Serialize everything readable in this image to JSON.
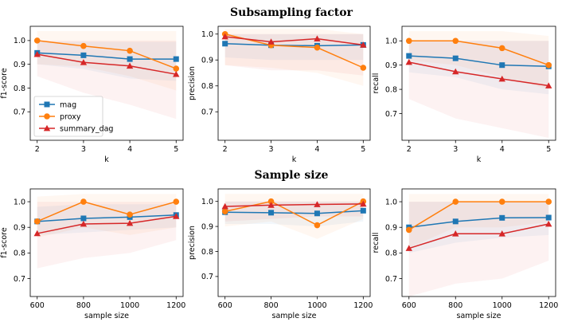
{
  "titles": {
    "top": "Subsampling factor",
    "bottom": "Sample size"
  },
  "colors": {
    "mag": "#1f77b4",
    "proxy": "#ff7f0e",
    "summary_dag": "#d62728"
  },
  "legend": [
    "mag",
    "proxy",
    "summary_dag"
  ],
  "chart_data": [
    {
      "type": "line",
      "row": 0,
      "col": 0,
      "xlabel": "k",
      "ylabel": "f1-score",
      "x": [
        2,
        3,
        4,
        5
      ],
      "xticks": [
        "2",
        "3",
        "4",
        "5"
      ],
      "xlim": [
        1.85,
        5.15
      ],
      "ylim": [
        0.58,
        1.06
      ],
      "yticks": [
        "0.7",
        "0.8",
        "0.9",
        "1.0"
      ],
      "ytick_values": [
        0.7,
        0.8,
        0.9,
        1.0
      ],
      "legend": true,
      "series": [
        {
          "name": "mag",
          "marker": "square",
          "values": [
            0.948,
            0.938,
            0.922,
            0.922
          ],
          "band": [
            [
              0.9,
              0.995
            ],
            [
              0.88,
              0.995
            ],
            [
              0.84,
              0.995
            ],
            [
              0.83,
              0.995
            ]
          ]
        },
        {
          "name": "proxy",
          "marker": "circle",
          "values": [
            1.0,
            0.977,
            0.957,
            0.882
          ],
          "band": [
            [
              0.9,
              1.04
            ],
            [
              0.89,
              1.04
            ],
            [
              0.85,
              1.04
            ],
            [
              0.79,
              1.04
            ]
          ]
        },
        {
          "name": "summary_dag",
          "marker": "triangle",
          "values": [
            0.942,
            0.908,
            0.893,
            0.858
          ],
          "band": [
            [
              0.85,
              1.0
            ],
            [
              0.78,
              1.0
            ],
            [
              0.73,
              1.0
            ],
            [
              0.67,
              1.0
            ]
          ]
        }
      ]
    },
    {
      "type": "line",
      "row": 0,
      "col": 1,
      "xlabel": "k",
      "ylabel": "precision",
      "x": [
        2,
        3,
        4,
        5
      ],
      "xticks": [
        "2",
        "3",
        "4",
        "5"
      ],
      "xlim": [
        1.85,
        5.15
      ],
      "ylim": [
        0.59,
        1.03
      ],
      "yticks": [
        "0.7",
        "0.8",
        "0.9",
        "1.0"
      ],
      "ytick_values": [
        0.7,
        0.8,
        0.9,
        1.0
      ],
      "legend": false,
      "series": [
        {
          "name": "mag",
          "marker": "square",
          "values": [
            0.963,
            0.957,
            0.955,
            0.958
          ],
          "band": [
            [
              0.91,
              1.0
            ],
            [
              0.9,
              1.0
            ],
            [
              0.9,
              1.0
            ],
            [
              0.9,
              1.0
            ]
          ]
        },
        {
          "name": "proxy",
          "marker": "circle",
          "values": [
            1.0,
            0.957,
            0.948,
            0.87
          ],
          "band": [
            [
              0.88,
              1.02
            ],
            [
              0.87,
              1.02
            ],
            [
              0.85,
              1.02
            ],
            [
              0.8,
              1.0
            ]
          ]
        },
        {
          "name": "summary_dag",
          "marker": "triangle",
          "values": [
            0.99,
            0.97,
            0.982,
            0.958
          ],
          "band": [
            [
              0.88,
              1.0
            ],
            [
              0.86,
              1.0
            ],
            [
              0.86,
              1.0
            ],
            [
              0.84,
              1.0
            ]
          ]
        }
      ]
    },
    {
      "type": "line",
      "row": 0,
      "col": 2,
      "xlabel": "k",
      "ylabel": "recall",
      "x": [
        2,
        3,
        4,
        5
      ],
      "xticks": [
        "2",
        "3",
        "4",
        "5"
      ],
      "xlim": [
        1.85,
        5.15
      ],
      "ylim": [
        0.59,
        1.06
      ],
      "yticks": [
        "0.7",
        "0.8",
        "0.9",
        "1.0"
      ],
      "ytick_values": [
        0.7,
        0.8,
        0.9,
        1.0
      ],
      "legend": false,
      "series": [
        {
          "name": "mag",
          "marker": "square",
          "values": [
            0.938,
            0.928,
            0.9,
            0.895
          ],
          "band": [
            [
              0.87,
              1.0
            ],
            [
              0.85,
              1.0
            ],
            [
              0.8,
              1.0
            ],
            [
              0.78,
              1.0
            ]
          ]
        },
        {
          "name": "proxy",
          "marker": "circle",
          "values": [
            1.0,
            1.0,
            0.97,
            0.9
          ],
          "band": [
            [
              0.92,
              1.04
            ],
            [
              0.9,
              1.04
            ],
            [
              0.85,
              1.04
            ],
            [
              0.8,
              1.02
            ]
          ]
        },
        {
          "name": "summary_dag",
          "marker": "triangle",
          "values": [
            0.912,
            0.873,
            0.843,
            0.815
          ],
          "band": [
            [
              0.76,
              1.0
            ],
            [
              0.68,
              1.0
            ],
            [
              0.64,
              1.0
            ],
            [
              0.6,
              1.0
            ]
          ]
        }
      ]
    },
    {
      "type": "line",
      "row": 1,
      "col": 0,
      "xlabel": "sample size",
      "ylabel": "f1-score",
      "x": [
        600,
        800,
        1000,
        1200
      ],
      "xticks": [
        "600",
        "800",
        "1000",
        "1200"
      ],
      "xlim": [
        570,
        1230
      ],
      "ylim": [
        0.63,
        1.05
      ],
      "yticks": [
        "0.7",
        "0.8",
        "0.9",
        "1.0"
      ],
      "ytick_values": [
        0.7,
        0.8,
        0.9,
        1.0
      ],
      "legend": false,
      "series": [
        {
          "name": "mag",
          "marker": "square",
          "values": [
            0.923,
            0.935,
            0.94,
            0.948
          ],
          "band": [
            [
              0.87,
              0.98
            ],
            [
              0.88,
              0.99
            ],
            [
              0.89,
              0.99
            ],
            [
              0.9,
              0.99
            ]
          ]
        },
        {
          "name": "proxy",
          "marker": "circle",
          "values": [
            0.923,
            1.0,
            0.95,
            1.0
          ],
          "band": [
            [
              0.86,
              1.02
            ],
            [
              0.9,
              1.03
            ],
            [
              0.87,
              1.03
            ],
            [
              0.9,
              1.03
            ]
          ]
        },
        {
          "name": "summary_dag",
          "marker": "triangle",
          "values": [
            0.876,
            0.913,
            0.916,
            0.943
          ],
          "band": [
            [
              0.74,
              1.0
            ],
            [
              0.78,
              1.0
            ],
            [
              0.8,
              1.0
            ],
            [
              0.85,
              1.0
            ]
          ]
        }
      ]
    },
    {
      "type": "line",
      "row": 1,
      "col": 1,
      "xlabel": "sample size",
      "ylabel": "precision",
      "x": [
        600,
        800,
        1000,
        1200
      ],
      "xticks": [
        "600",
        "800",
        "1000",
        "1200"
      ],
      "xlim": [
        570,
        1230
      ],
      "ylim": [
        0.62,
        1.05
      ],
      "yticks": [
        "0.7",
        "0.8",
        "0.9",
        "1.0"
      ],
      "ytick_values": [
        0.7,
        0.8,
        0.9,
        1.0
      ],
      "legend": false,
      "series": [
        {
          "name": "mag",
          "marker": "square",
          "values": [
            0.957,
            0.955,
            0.952,
            0.963
          ],
          "band": [
            [
              0.91,
              1.0
            ],
            [
              0.91,
              1.0
            ],
            [
              0.9,
              1.0
            ],
            [
              0.92,
              1.0
            ]
          ]
        },
        {
          "name": "proxy",
          "marker": "circle",
          "values": [
            0.96,
            1.0,
            0.905,
            1.0
          ],
          "band": [
            [
              0.9,
              1.03
            ],
            [
              0.92,
              1.03
            ],
            [
              0.85,
              1.03
            ],
            [
              0.93,
              1.03
            ]
          ]
        },
        {
          "name": "summary_dag",
          "marker": "triangle",
          "values": [
            0.98,
            0.985,
            0.988,
            0.99
          ],
          "band": [
            [
              0.92,
              1.0
            ],
            [
              0.93,
              1.0
            ],
            [
              0.94,
              1.0
            ],
            [
              0.94,
              1.0
            ]
          ]
        }
      ]
    },
    {
      "type": "line",
      "row": 1,
      "col": 2,
      "xlabel": "sample size",
      "ylabel": "recall",
      "x": [
        600,
        800,
        1000,
        1200
      ],
      "xticks": [
        "600",
        "800",
        "1000",
        "1200"
      ],
      "xlim": [
        570,
        1230
      ],
      "ylim": [
        0.63,
        1.05
      ],
      "yticks": [
        "0.7",
        "0.8",
        "0.9",
        "1.0"
      ],
      "ytick_values": [
        0.7,
        0.8,
        0.9,
        1.0
      ],
      "legend": false,
      "series": [
        {
          "name": "mag",
          "marker": "square",
          "values": [
            0.9,
            0.923,
            0.937,
            0.938
          ],
          "band": [
            [
              0.8,
              1.0
            ],
            [
              0.84,
              1.0
            ],
            [
              0.86,
              1.0
            ],
            [
              0.87,
              1.0
            ]
          ]
        },
        {
          "name": "proxy",
          "marker": "circle",
          "values": [
            0.89,
            1.0,
            1.0,
            1.0
          ],
          "band": [
            [
              0.82,
              1.03
            ],
            [
              0.9,
              1.03
            ],
            [
              0.9,
              1.03
            ],
            [
              0.92,
              1.03
            ]
          ]
        },
        {
          "name": "summary_dag",
          "marker": "triangle",
          "values": [
            0.818,
            0.875,
            0.875,
            0.913
          ],
          "band": [
            [
              0.63,
              1.0
            ],
            [
              0.68,
              1.0
            ],
            [
              0.7,
              1.0
            ],
            [
              0.77,
              1.0
            ]
          ]
        }
      ]
    }
  ]
}
